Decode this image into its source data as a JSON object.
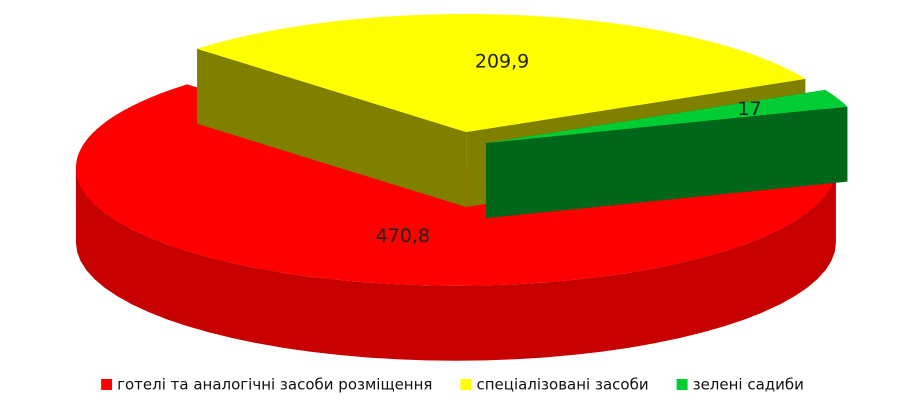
{
  "chart_data": {
    "type": "pie3d",
    "categories": [
      "готелі та аналогічні засоби розміщення",
      "спеціалізовані засоби",
      "зелені садиби"
    ],
    "values": [
      470.8,
      209.9,
      17
    ],
    "value_labels": [
      "470,8",
      "209,9",
      "17"
    ],
    "colors": [
      "#ff0000",
      "#ffff00",
      "#00cc33"
    ],
    "legend": "bottom"
  }
}
